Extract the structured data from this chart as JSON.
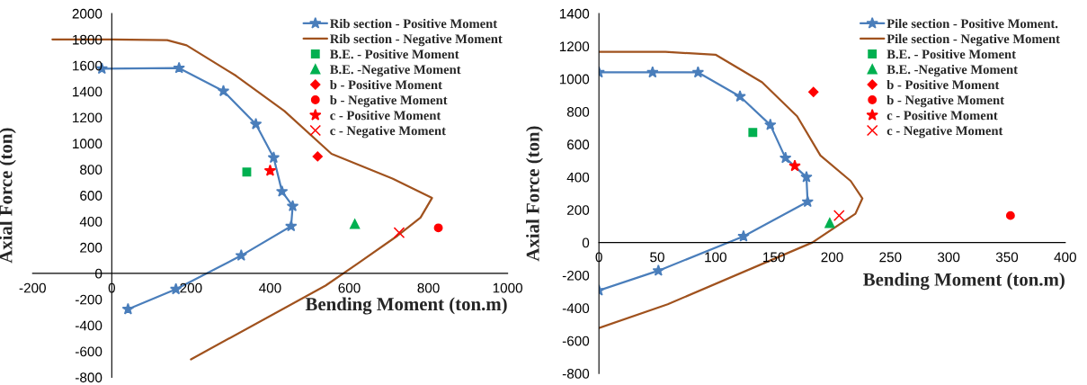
{
  "chart_data": [
    {
      "type": "line",
      "xlabel": "Bending Moment (ton.m)",
      "ylabel": "Axial Force (ton)",
      "xlim": [
        -200,
        1000
      ],
      "ylim": [
        -800,
        2000
      ],
      "xticks": [
        -200,
        0,
        200,
        400,
        600,
        800,
        1000
      ],
      "yticks": [
        -800,
        -600,
        -400,
        -200,
        0,
        200,
        400,
        600,
        800,
        1000,
        1200,
        1400,
        1600,
        1800,
        2000
      ],
      "grid": false,
      "legend": "top right",
      "series": [
        {
          "name": "Rib section - Positive Moment",
          "marker": "star",
          "color": "#4a7ebb",
          "x": [
            -25,
            170,
            282,
            364,
            409,
            430,
            457,
            453,
            327,
            162,
            41
          ],
          "values": [
            1575,
            1580,
            1403,
            1148,
            890,
            630,
            517,
            363,
            137,
            -122,
            -276
          ]
        },
        {
          "name": "Rib section - Negative Moment",
          "marker": "none",
          "color": "#a0521e",
          "x": [
            -150,
            0,
            140,
            189,
            314,
            436,
            555,
            709,
            809,
            780,
            722,
            620,
            540,
            200
          ],
          "values": [
            1800,
            1800,
            1795,
            1755,
            1520,
            1250,
            920,
            730,
            580,
            429,
            290,
            73,
            -94,
            -662
          ]
        },
        {
          "name": "B.E. - Positive Moment",
          "type": "scatter",
          "marker": "square",
          "color": "#00b050",
          "x": [
            341
          ],
          "values": [
            780
          ]
        },
        {
          "name": "B.E. -Negative Moment",
          "type": "scatter",
          "marker": "triangle",
          "color": "#00b050",
          "x": [
            614
          ],
          "values": [
            380
          ]
        },
        {
          "name": "b - Positive Moment",
          "type": "scatter",
          "marker": "diamond",
          "color": "#ff0000",
          "x": [
            520
          ],
          "values": [
            900
          ]
        },
        {
          "name": "b - Negative Moment",
          "type": "scatter",
          "marker": "circle",
          "color": "#ff0000",
          "x": [
            825
          ],
          "values": [
            350
          ]
        },
        {
          "name": "c - Positive Moment",
          "type": "scatter",
          "marker": "star",
          "color": "#ff0000",
          "x": [
            400
          ],
          "values": [
            790
          ]
        },
        {
          "name": "c - Negative Moment",
          "type": "scatter",
          "marker": "cross",
          "color": "#ff0000",
          "x": [
            726
          ],
          "values": [
            313
          ]
        }
      ]
    },
    {
      "type": "line",
      "xlabel": "Bending Moment (ton.m)",
      "ylabel": "Axial Force (ton)",
      "xlim": [
        0,
        400
      ],
      "ylim": [
        -800,
        1400
      ],
      "xticks": [
        0,
        50,
        100,
        150,
        200,
        250,
        300,
        350,
        400
      ],
      "yticks": [
        -800,
        -600,
        -400,
        -200,
        0,
        200,
        400,
        600,
        800,
        1000,
        1200,
        1400
      ],
      "grid": false,
      "legend": "top right",
      "series": [
        {
          "name": "Pile section - Positive Moment.",
          "marker": "star",
          "color": "#4a7ebb",
          "x": [
            0,
            46,
            85,
            121,
            147,
            160,
            178,
            179,
            124,
            51,
            0
          ],
          "values": [
            1040,
            1040,
            1040,
            893,
            719,
            517,
            400,
            249,
            38,
            -172,
            -293
          ]
        },
        {
          "name": "Pile section - Negative Moment",
          "marker": "none",
          "color": "#a0521e",
          "x": [
            0,
            57,
            100,
            140,
            170,
            190,
            216,
            226,
            220,
            183,
            59,
            0
          ],
          "values": [
            1165,
            1165,
            1148,
            979,
            772,
            532,
            376,
            270,
            176,
            0,
            -377,
            -522
          ]
        },
        {
          "name": "B.E. - Positive Moment",
          "type": "scatter",
          "marker": "square",
          "color": "#00b050",
          "x": [
            132
          ],
          "values": [
            673
          ]
        },
        {
          "name": "B.E. -Negative Moment",
          "type": "scatter",
          "marker": "triangle",
          "color": "#00b050",
          "x": [
            198
          ],
          "values": [
            120
          ]
        },
        {
          "name": "b - Positive Moment",
          "type": "scatter",
          "marker": "diamond",
          "color": "#ff0000",
          "x": [
            184
          ],
          "values": [
            920
          ]
        },
        {
          "name": "b - Negative Moment",
          "type": "scatter",
          "marker": "circle",
          "color": "#ff0000",
          "x": [
            353
          ],
          "values": [
            165
          ]
        },
        {
          "name": "c - Positive Moment",
          "type": "scatter",
          "marker": "star",
          "color": "#ff0000",
          "x": [
            168
          ],
          "values": [
            468
          ]
        },
        {
          "name": "c - Negative Moment",
          "type": "scatter",
          "marker": "cross",
          "color": "#ff0000",
          "x": [
            206
          ],
          "values": [
            165
          ]
        }
      ]
    }
  ]
}
